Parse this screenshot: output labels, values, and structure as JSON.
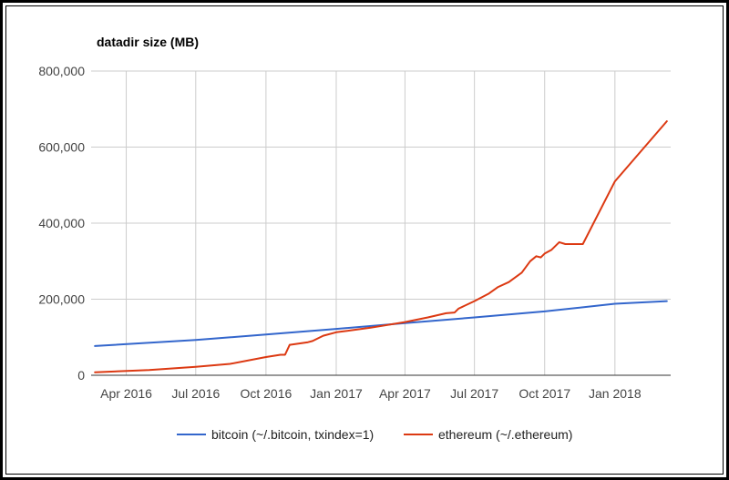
{
  "chart_data": {
    "type": "line",
    "title": "datadir size (MB)",
    "xlabel": "",
    "ylabel": "",
    "ylim": [
      0,
      800000
    ],
    "yticks": [
      {
        "value": 0,
        "label": "0"
      },
      {
        "value": 200000,
        "label": "200,000"
      },
      {
        "value": 400000,
        "label": "400,000"
      },
      {
        "value": 600000,
        "label": "600,000"
      },
      {
        "value": 800000,
        "label": "800,000"
      }
    ],
    "xlim": [
      "2016-02-15",
      "2018-03-15"
    ],
    "xticks": [
      {
        "value": "2016-04-01",
        "label": "Apr 2016"
      },
      {
        "value": "2016-07-01",
        "label": "Jul 2016"
      },
      {
        "value": "2016-10-01",
        "label": "Oct 2016"
      },
      {
        "value": "2017-01-01",
        "label": "Jan 2017"
      },
      {
        "value": "2017-04-01",
        "label": "Apr 2017"
      },
      {
        "value": "2017-07-01",
        "label": "Jul 2017"
      },
      {
        "value": "2017-10-01",
        "label": "Oct 2017"
      },
      {
        "value": "2018-01-01",
        "label": "Jan 2018"
      }
    ],
    "grid": true,
    "legend_position": "bottom",
    "series": [
      {
        "name": "bitcoin (~/.bitcoin, txindex=1)",
        "color": "#3366cc",
        "points": [
          {
            "x": "2016-02-20",
            "y": 77000
          },
          {
            "x": "2016-07-01",
            "y": 93000
          },
          {
            "x": "2016-10-01",
            "y": 107000
          },
          {
            "x": "2017-01-01",
            "y": 122000
          },
          {
            "x": "2017-04-01",
            "y": 137000
          },
          {
            "x": "2017-07-01",
            "y": 152000
          },
          {
            "x": "2017-10-01",
            "y": 168000
          },
          {
            "x": "2018-01-01",
            "y": 188000
          },
          {
            "x": "2018-03-10",
            "y": 195000
          }
        ]
      },
      {
        "name": "ethereum (~/.ethereum)",
        "color": "#dc3912",
        "points": [
          {
            "x": "2016-02-20",
            "y": 8000
          },
          {
            "x": "2016-05-01",
            "y": 14000
          },
          {
            "x": "2016-07-01",
            "y": 22000
          },
          {
            "x": "2016-08-15",
            "y": 30000
          },
          {
            "x": "2016-10-01",
            "y": 48000
          },
          {
            "x": "2016-10-20",
            "y": 54000
          },
          {
            "x": "2016-10-26",
            "y": 54000
          },
          {
            "x": "2016-11-01",
            "y": 80000
          },
          {
            "x": "2016-11-25",
            "y": 87000
          },
          {
            "x": "2016-12-01",
            "y": 90000
          },
          {
            "x": "2016-12-15",
            "y": 104000
          },
          {
            "x": "2017-01-01",
            "y": 113000
          },
          {
            "x": "2017-02-15",
            "y": 125000
          },
          {
            "x": "2017-04-01",
            "y": 140000
          },
          {
            "x": "2017-05-01",
            "y": 152000
          },
          {
            "x": "2017-05-25",
            "y": 163000
          },
          {
            "x": "2017-06-05",
            "y": 165000
          },
          {
            "x": "2017-06-10",
            "y": 175000
          },
          {
            "x": "2017-07-01",
            "y": 195000
          },
          {
            "x": "2017-07-20",
            "y": 215000
          },
          {
            "x": "2017-08-01",
            "y": 232000
          },
          {
            "x": "2017-08-15",
            "y": 245000
          },
          {
            "x": "2017-09-01",
            "y": 270000
          },
          {
            "x": "2017-09-12",
            "y": 300000
          },
          {
            "x": "2017-09-20",
            "y": 313000
          },
          {
            "x": "2017-09-26",
            "y": 310000
          },
          {
            "x": "2017-10-01",
            "y": 320000
          },
          {
            "x": "2017-10-10",
            "y": 330000
          },
          {
            "x": "2017-10-20",
            "y": 350000
          },
          {
            "x": "2017-10-28",
            "y": 345000
          },
          {
            "x": "2017-11-15",
            "y": 345000
          },
          {
            "x": "2017-11-20",
            "y": 345000
          },
          {
            "x": "2018-01-01",
            "y": 510000
          },
          {
            "x": "2018-03-10",
            "y": 668000
          }
        ]
      }
    ]
  }
}
